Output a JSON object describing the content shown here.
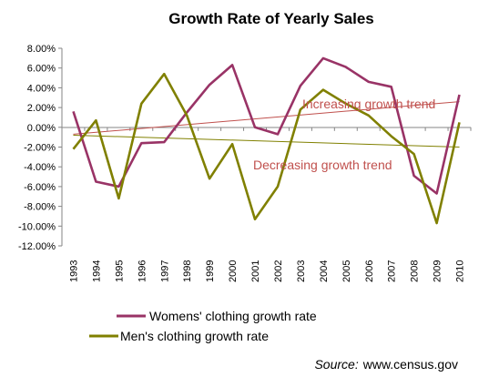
{
  "chart_data": {
    "type": "line",
    "title": "Growth Rate of Yearly Sales",
    "xlabel": "",
    "ylabel": "",
    "x": [
      "1993",
      "1994",
      "1995",
      "1996",
      "1997",
      "1998",
      "1999",
      "2000",
      "2001",
      "2002",
      "2003",
      "2004",
      "2005",
      "2006",
      "2007",
      "2008",
      "2009",
      "2010"
    ],
    "ylim": [
      -12,
      8
    ],
    "y_ticks": [
      "8.00%",
      "6.00%",
      "4.00%",
      "2.00%",
      "0.00%",
      "-2.00%",
      "-4.00%",
      "-6.00%",
      "-8.00%",
      "-10.00%",
      "-12.00%"
    ],
    "y_tick_values": [
      8,
      6,
      4,
      2,
      0,
      -2,
      -4,
      -6,
      -8,
      -10,
      -12
    ],
    "grid": false,
    "legend_position": "bottom",
    "series": [
      {
        "name": "Womens' clothing growth rate",
        "color": "#993366",
        "values": [
          1.6,
          -5.5,
          -6.0,
          -1.6,
          -1.5,
          1.5,
          4.3,
          6.3,
          0.0,
          -0.7,
          4.2,
          7.0,
          6.1,
          4.6,
          4.1,
          -4.9,
          -6.7,
          3.3
        ]
      },
      {
        "name": "Men's clothing growth rate",
        "color": "#808000",
        "values": [
          -2.2,
          0.7,
          -7.2,
          2.4,
          5.4,
          1.2,
          -5.2,
          -1.7,
          -9.3,
          -6.0,
          1.8,
          3.8,
          2.4,
          1.2,
          -0.9,
          -2.7,
          -9.7,
          0.5
        ]
      }
    ],
    "trendlines": [
      {
        "series": "Womens' clothing growth rate",
        "color": "#c0504d",
        "start": -0.7,
        "end": 2.6
      },
      {
        "series": "Men's clothing growth rate",
        "color": "#808000",
        "start": -0.8,
        "end": -2.0
      }
    ],
    "annotations": [
      {
        "text": "Increasing growth trend",
        "color": "#c0504d"
      },
      {
        "text": "Decreasing growth trend",
        "color": "#c0504d"
      }
    ]
  },
  "source_label": "Source:",
  "source_text": "www.census.gov"
}
